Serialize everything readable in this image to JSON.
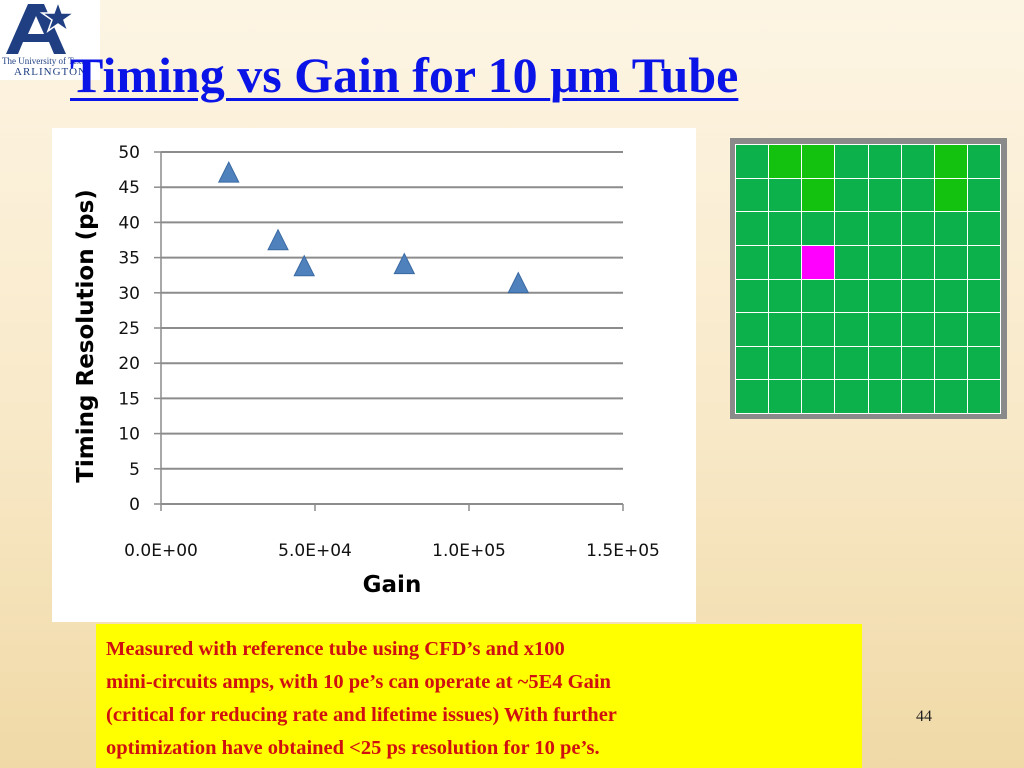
{
  "logo": {
    "line1": "The University of Texas",
    "line2": "ARLINGTON",
    "colors": {
      "blue": "#1f3f82",
      "star": "#ffffff"
    }
  },
  "title": {
    "before": "Timing vs Gain for 10 ",
    "mu": "μ",
    "after": "m Tube"
  },
  "chart_data": {
    "type": "scatter",
    "xlabel": "Gain",
    "ylabel": "Timing Resolution  (ps)",
    "xlim": [
      0,
      150000
    ],
    "ylim": [
      0,
      50
    ],
    "x_ticks": [
      0,
      50000,
      100000,
      150000
    ],
    "x_tick_labels": [
      "0.0E+00",
      "5.0E+04",
      "1.0E+05",
      "1.5E+05"
    ],
    "y_ticks": [
      0,
      5,
      10,
      15,
      20,
      25,
      30,
      35,
      40,
      45,
      50
    ],
    "y_tick_labels": [
      "0",
      "5",
      "10",
      "15",
      "20",
      "25",
      "30",
      "35",
      "40",
      "45",
      "50"
    ],
    "grid": "horizontal",
    "legend": "none",
    "marker": "triangle",
    "marker_color": "#4f81bd",
    "series": [
      {
        "points": [
          {
            "x": 22000,
            "y": 47
          },
          {
            "x": 38000,
            "y": 37.4
          },
          {
            "x": 46500,
            "y": 33.7
          },
          {
            "x": 79000,
            "y": 34
          },
          {
            "x": 116000,
            "y": 31.3
          }
        ]
      }
    ]
  },
  "pixel_grid": {
    "rows": 8,
    "cols": 8,
    "colors": {
      "base": "#0db14b",
      "bright": "#13c20e",
      "highlight": "#ff00ff",
      "frame": "#8a8a8a"
    },
    "bright_cells": [
      [
        0,
        1
      ],
      [
        0,
        2
      ],
      [
        0,
        6
      ],
      [
        1,
        2
      ],
      [
        1,
        6
      ]
    ],
    "highlight_cells": [
      [
        3,
        2
      ]
    ]
  },
  "note": {
    "lines": [
      "Measured with reference tube using CFD’s and x100",
      "mini-circuits amps, with 10 pe’s  can operate at   ~5E4 Gain",
      "(critical for reducing  rate and lifetime issues)   With further",
      "optimization have obtained <25 ps resolution for 10 pe’s."
    ]
  },
  "page_number": "44"
}
